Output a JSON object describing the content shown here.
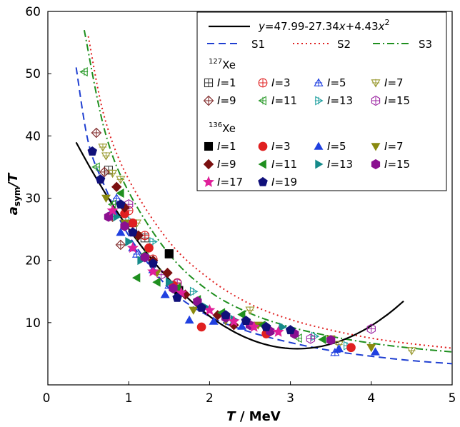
{
  "chart_data": {
    "type": "scatter",
    "xlabel": {
      "var": "T",
      "unit": " / MeV"
    },
    "ylabel": {
      "base": "a",
      "sub": "sym",
      "tail": "/T"
    },
    "xlim": [
      0,
      5
    ],
    "ylim": [
      0,
      60
    ],
    "x_ticks": [
      "0",
      "1",
      "2",
      "3",
      "4",
      "5"
    ],
    "y_ticks": [
      "10",
      "20",
      "30",
      "40",
      "50",
      "60"
    ],
    "legend_placement": "top-right",
    "fit": {
      "label": {
        "p1": "y",
        "p2": "=47.99-27.34",
        "p3": "x",
        "p4": "+4.43",
        "p5": "x",
        "p6": "2"
      },
      "color": "#000000",
      "x_range": [
        0.35,
        4.4
      ],
      "coefficients": [
        47.99,
        -27.34,
        4.43
      ]
    },
    "curves": [
      {
        "name": "S1",
        "color": "#1f3fd1",
        "dash": "10,6",
        "x_start": 0.35,
        "points": [
          [
            0.35,
            51
          ],
          [
            0.5,
            39
          ],
          [
            0.7,
            32
          ],
          [
            1.0,
            24
          ],
          [
            1.5,
            15.5
          ],
          [
            2.0,
            11
          ],
          [
            2.5,
            8.5
          ],
          [
            3.0,
            6.8
          ],
          [
            3.5,
            5.5
          ],
          [
            4.0,
            4.6
          ],
          [
            4.5,
            3.9
          ],
          [
            5.0,
            3.4
          ]
        ]
      },
      {
        "name": "S2",
        "color": "#e02020",
        "dash": "2,4",
        "x_start": 0.5,
        "points": [
          [
            0.5,
            56
          ],
          [
            0.7,
            43
          ],
          [
            1.0,
            33
          ],
          [
            1.5,
            23
          ],
          [
            2.0,
            17
          ],
          [
            2.5,
            13
          ],
          [
            3.0,
            10.5
          ],
          [
            3.5,
            8.8
          ],
          [
            4.0,
            7.5
          ],
          [
            4.5,
            6.6
          ],
          [
            5.0,
            5.9
          ]
        ]
      },
      {
        "name": "S3",
        "color": "#1f8f1f",
        "dash": "10,4,2,4",
        "x_start": 0.45,
        "points": [
          [
            0.45,
            57
          ],
          [
            0.7,
            41
          ],
          [
            1.0,
            31
          ],
          [
            1.5,
            21
          ],
          [
            2.0,
            15
          ],
          [
            2.5,
            11.5
          ],
          [
            3.0,
            9.3
          ],
          [
            3.5,
            7.8
          ],
          [
            4.0,
            6.7
          ],
          [
            4.5,
            5.9
          ],
          [
            5.0,
            5.3
          ]
        ]
      }
    ],
    "legend_groups": [
      {
        "label": "Xe",
        "mass": "127",
        "style": "open",
        "series": [
          {
            "name": "1",
            "marker": "square-cross",
            "color": "#333333",
            "points": [
              [
                1.62,
                15.2
              ],
              [
                1.5,
                21
              ],
              [
                1.2,
                23.6
              ],
              [
                1.05,
                25.4
              ],
              [
                0.75,
                34.5
              ]
            ]
          },
          {
            "name": "3",
            "marker": "circle-cross",
            "color": "#e02020",
            "points": [
              [
                1.0,
                28
              ],
              [
                1.2,
                24
              ],
              [
                1.3,
                20.2
              ],
              [
                1.6,
                16.4
              ]
            ]
          },
          {
            "name": "5",
            "marker": "triangle-up-cross",
            "color": "#2040e0",
            "points": [
              [
                0.85,
                30
              ],
              [
                1.1,
                21
              ],
              [
                1.5,
                16
              ],
              [
                3.55,
                5.2
              ]
            ]
          },
          {
            "name": "7",
            "marker": "triangle-down-cross",
            "color": "#9a9a30",
            "points": [
              [
                0.68,
                38.2
              ],
              [
                0.72,
                36.8
              ],
              [
                0.8,
                34
              ],
              [
                0.9,
                33
              ],
              [
                1.1,
                26
              ],
              [
                2.5,
                12
              ],
              [
                3.6,
                6.5
              ],
              [
                4.5,
                5.5
              ]
            ]
          },
          {
            "name": "9",
            "marker": "diamond-cross",
            "color": "#7a1f1f",
            "points": [
              [
                0.6,
                40.5
              ],
              [
                0.7,
                34.2
              ],
              [
                0.8,
                27
              ],
              [
                0.9,
                22.5
              ]
            ]
          },
          {
            "name": "11",
            "marker": "left-triangle-cross",
            "color": "#2a9a2a",
            "points": [
              [
                0.45,
                50.3
              ],
              [
                0.6,
                35
              ],
              [
                0.8,
                29
              ],
              [
                1.2,
                21
              ],
              [
                3.1,
                7.5
              ]
            ]
          },
          {
            "name": "13",
            "marker": "right-triangle-cross",
            "color": "#20a0a0",
            "points": [
              [
                1.0,
                26.5
              ],
              [
                1.3,
                23
              ],
              [
                1.8,
                15
              ],
              [
                3.3,
                7.8
              ],
              [
                3.7,
                6.3
              ]
            ]
          },
          {
            "name": "15",
            "marker": "hexagon-cross",
            "color": "#9a20a0",
            "points": [
              [
                1.0,
                29
              ],
              [
                1.4,
                17.7
              ],
              [
                1.6,
                16.3
              ],
              [
                3.25,
                7.4
              ],
              [
                4.0,
                9
              ]
            ]
          }
        ]
      },
      {
        "label": "Xe",
        "mass": "136",
        "style": "filled",
        "series": [
          {
            "name": "1",
            "marker": "square",
            "color": "#000000",
            "points": [
              [
                1.5,
                21.1
              ],
              [
                1.62,
                15.1
              ]
            ]
          },
          {
            "name": "3",
            "marker": "circle",
            "color": "#e02020",
            "points": [
              [
                0.95,
                27.5
              ],
              [
                1.05,
                26
              ],
              [
                1.25,
                22
              ],
              [
                1.55,
                16
              ],
              [
                1.9,
                9.3
              ],
              [
                2.7,
                8.2
              ],
              [
                3.75,
                6
              ]
            ]
          },
          {
            "name": "5",
            "marker": "triangle-up",
            "color": "#2040e0",
            "points": [
              [
                0.8,
                28
              ],
              [
                0.9,
                24.5
              ],
              [
                1.05,
                22
              ],
              [
                1.3,
                18.5
              ],
              [
                1.45,
                14.5
              ],
              [
                1.75,
                10.4
              ],
              [
                2.05,
                10.2
              ],
              [
                2.4,
                9.4
              ],
              [
                3.6,
                5.8
              ],
              [
                4.05,
                5.3
              ]
            ]
          },
          {
            "name": "7",
            "marker": "triangle-down",
            "color": "#8a8a10",
            "points": [
              [
                0.72,
                30
              ],
              [
                0.95,
                26
              ],
              [
                1.1,
                24
              ],
              [
                1.35,
                18
              ],
              [
                1.8,
                12
              ],
              [
                2.2,
                10.3
              ],
              [
                2.6,
                9.6
              ],
              [
                3.5,
                7.4
              ],
              [
                4.0,
                6
              ]
            ]
          },
          {
            "name": "9",
            "marker": "diamond",
            "color": "#7a1010",
            "points": [
              [
                0.85,
                31.8
              ],
              [
                0.95,
                28.5
              ],
              [
                1.12,
                24
              ],
              [
                1.3,
                20
              ],
              [
                1.48,
                18
              ],
              [
                1.7,
                14.5
              ],
              [
                2.1,
                11.2
              ],
              [
                2.3,
                9.6
              ],
              [
                2.7,
                9.3
              ]
            ]
          },
          {
            "name": "11",
            "marker": "left-triangle",
            "color": "#1f8f1f",
            "points": [
              [
                0.9,
                30.8
              ],
              [
                1.1,
                17.2
              ],
              [
                1.35,
                16.5
              ],
              [
                1.6,
                15.6
              ],
              [
                1.85,
                13.7
              ],
              [
                2.15,
                11.6
              ],
              [
                2.4,
                11.3
              ],
              [
                2.65,
                9.6
              ],
              [
                3.4,
                7.3
              ]
            ]
          },
          {
            "name": "13",
            "marker": "right-triangle",
            "color": "#158a8a",
            "points": [
              [
                0.85,
                27
              ],
              [
                1.0,
                23
              ],
              [
                1.15,
                20
              ],
              [
                1.5,
                16.5
              ],
              [
                1.95,
                12.5
              ],
              [
                2.3,
                10.5
              ],
              [
                2.9,
                9.3
              ]
            ]
          },
          {
            "name": "15",
            "marker": "hexagon",
            "color": "#8a1090",
            "points": [
              [
                0.75,
                27
              ],
              [
                0.95,
                25.5
              ],
              [
                1.2,
                20.5
              ],
              [
                1.55,
                15.5
              ],
              [
                1.85,
                13.4
              ],
              [
                2.2,
                10.8
              ],
              [
                2.5,
                9.6
              ],
              [
                2.75,
                8.6
              ],
              [
                3.05,
                8.2
              ],
              [
                3.5,
                7.2
              ]
            ]
          },
          {
            "name": "17",
            "marker": "star",
            "color": "#e0209a",
            "points": [
              [
                0.8,
                28
              ],
              [
                1.05,
                22
              ],
              [
                1.3,
                18.2
              ],
              [
                1.65,
                14.8
              ],
              [
                2.0,
                12
              ],
              [
                2.3,
                10.2
              ],
              [
                2.55,
                9.3
              ],
              [
                2.85,
                8.5
              ]
            ]
          },
          {
            "name": "19",
            "marker": "pentagon",
            "color": "#10107a",
            "points": [
              [
                0.55,
                37.5
              ],
              [
                0.65,
                33
              ],
              [
                0.9,
                29
              ],
              [
                1.05,
                24.5
              ],
              [
                1.3,
                19.5
              ],
              [
                1.6,
                14
              ],
              [
                1.9,
                12.4
              ],
              [
                2.2,
                11.2
              ],
              [
                2.45,
                10.3
              ],
              [
                2.7,
                9.3
              ],
              [
                3.0,
                8.8
              ]
            ]
          }
        ]
      }
    ]
  }
}
